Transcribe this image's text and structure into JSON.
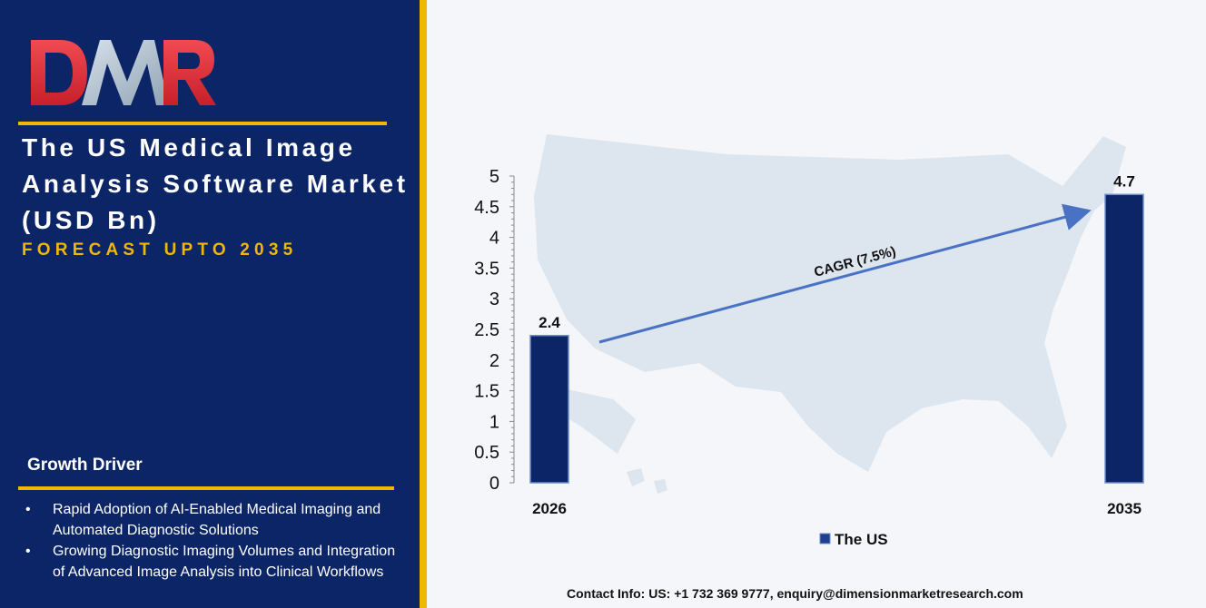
{
  "brand": {
    "logo_text": "DMR"
  },
  "header": {
    "title": "The US Medical Image Analysis Software Market (USD Bn)",
    "subtitle": "FORECAST UPTO 2035"
  },
  "growth_driver": {
    "heading": "Growth Driver",
    "items": [
      "Rapid Adoption of AI-Enabled Medical Imaging and Automated Diagnostic Solutions",
      "Growing Diagnostic Imaging Volumes and Integration of Advanced Image Analysis into Clinical Workflows"
    ]
  },
  "chart_data": {
    "type": "bar",
    "categories": [
      "2026",
      "2035"
    ],
    "series": [
      {
        "name": "The US",
        "values": [
          2.4,
          4.7
        ],
        "color": "#0b2566"
      }
    ],
    "data_labels": [
      "2.4",
      "4.7"
    ],
    "y_ticks": [
      "0",
      "0.5",
      "1",
      "1.5",
      "2",
      "2.5",
      "3",
      "3.5",
      "4",
      "4.5",
      "5"
    ],
    "ylim": [
      0,
      5
    ],
    "grid": false,
    "legend_position": "bottom",
    "annotation": "CAGR (7.5%)",
    "background": "map of the United States"
  },
  "colors": {
    "panel": "#0b2566",
    "accent": "#f2b705",
    "arrow": "#4a72c4",
    "map": "#dde5ef"
  },
  "footer": {
    "contact": "Contact Info: US: +1 732 369 9777, enquiry@dimensionmarketresearch.com"
  }
}
